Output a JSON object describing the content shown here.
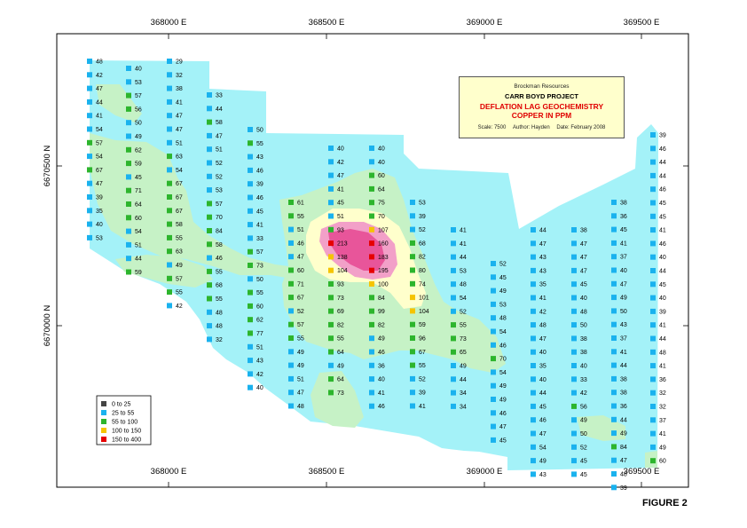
{
  "map": {
    "x_ticks": [
      "368000 E",
      "368500 E",
      "369000 E",
      "369500 E"
    ],
    "y_ticks": [
      "6670500 N",
      "6670000 N"
    ]
  },
  "title_box": {
    "company": "Brockman Resources",
    "project": "CARR BOYD PROJECT",
    "subtitle_line1": "DEFLATION LAG GEOCHEMISTRY",
    "subtitle_line2": "COPPER IN PPM",
    "scale": "Scale: 7500",
    "author": "Author: Hayden",
    "date": "Date: February 2008"
  },
  "legend": [
    {
      "label": "0  to  25",
      "color": "#444444"
    },
    {
      "label": "25  to  55",
      "color": "#1ab2ee"
    },
    {
      "label": "55  to  100",
      "color": "#2db52d"
    },
    {
      "label": "100  to  150",
      "color": "#f5c400"
    },
    {
      "label": "150  to  400",
      "color": "#e60000"
    }
  ],
  "contour_colors": {
    "low": "#a4f2f8",
    "mid": "#c6f2c6",
    "high": "#ffffcc",
    "peak": "#f2a0c8",
    "peak_core": "#e8559a"
  },
  "samples": [
    {
      "col": 0,
      "values": [
        48,
        42,
        47,
        44,
        41,
        54,
        57,
        54,
        67,
        47,
        39,
        35,
        40,
        53
      ]
    },
    {
      "col": 1,
      "values": [
        40,
        53,
        57,
        56,
        50,
        49,
        62,
        59,
        45,
        71,
        64,
        60,
        54,
        51,
        44,
        59
      ]
    },
    {
      "col": 2,
      "values": [
        29,
        32,
        38,
        41,
        47,
        47,
        51,
        63,
        54,
        67,
        67,
        67,
        58,
        55,
        63,
        49,
        57,
        55,
        42
      ]
    },
    {
      "col": 3,
      "values": [
        33,
        44,
        58,
        47,
        51,
        52,
        52,
        53,
        57,
        70,
        84,
        58,
        46,
        55,
        68,
        55,
        48,
        48,
        32
      ]
    },
    {
      "col": 4,
      "values": [
        50,
        55,
        43,
        46,
        39,
        46,
        45,
        41,
        33,
        57,
        73,
        50,
        55,
        60,
        62,
        77,
        51,
        43,
        42,
        40
      ]
    },
    {
      "col": 5,
      "values": [
        61,
        55,
        51,
        46,
        47,
        60,
        71,
        67,
        52,
        57,
        55,
        49,
        49,
        51,
        47,
        48
      ]
    },
    {
      "col": 6,
      "values": [
        40,
        42,
        47,
        41,
        45,
        51,
        93,
        213,
        138,
        104,
        93,
        73,
        69,
        82,
        55,
        64,
        49,
        64,
        73
      ]
    },
    {
      "col": 7,
      "values": [
        40,
        40,
        60,
        64,
        75,
        70,
        107,
        160,
        183,
        195,
        100,
        84,
        99,
        82,
        49,
        46,
        36,
        40,
        41,
        46
      ]
    },
    {
      "col": 8,
      "values": [
        53,
        39,
        52,
        68,
        82,
        80,
        74,
        101,
        104,
        59,
        96,
        67,
        55,
        52,
        39,
        41
      ]
    },
    {
      "col": 9,
      "values": [
        41,
        41,
        44,
        53,
        48,
        54,
        52,
        55,
        73,
        65,
        49,
        44,
        34,
        34
      ]
    },
    {
      "col": 10,
      "values": [
        52,
        45,
        49,
        53,
        48,
        54,
        46,
        70,
        54,
        49,
        49,
        46,
        47,
        45
      ]
    },
    {
      "col": 11,
      "values": [
        44,
        47,
        43,
        43,
        35,
        41,
        42,
        48,
        47,
        40,
        35,
        40,
        44,
        45,
        46,
        47,
        54,
        49,
        43
      ]
    },
    {
      "col": 12,
      "values": [
        38,
        47,
        47,
        47,
        45,
        40,
        48,
        50,
        38,
        38,
        40,
        33,
        42,
        56,
        49,
        50,
        52,
        45,
        45
      ]
    },
    {
      "col": 13,
      "values": [
        38,
        36,
        45,
        41,
        37,
        40,
        47,
        49,
        50,
        43,
        37,
        41,
        44,
        38,
        38,
        36,
        44,
        49,
        84,
        47,
        48,
        39
      ]
    },
    {
      "col": 14,
      "values": [
        39,
        46,
        44,
        44,
        46,
        45,
        45,
        41,
        46,
        40,
        44,
        45,
        40,
        39,
        41,
        44,
        48,
        41,
        36,
        32,
        32,
        37,
        41,
        49,
        60
      ]
    }
  ],
  "figure_label": "FIGURE 2"
}
